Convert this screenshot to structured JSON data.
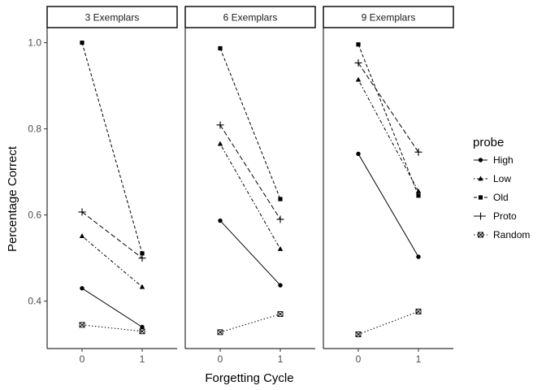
{
  "chart_data": {
    "type": "line",
    "facet_labels": [
      "3 Exemplars",
      "6 Exemplars",
      "9 Exemplars"
    ],
    "xlabel": "Forgetting Cycle",
    "ylabel": "Percentage Correct",
    "x_ticks": [
      "0",
      "1"
    ],
    "y_ticks": [
      "0.4",
      "0.6",
      "0.8",
      "1.0"
    ],
    "ylim": [
      0.29,
      1.035
    ],
    "legend": {
      "title": "probe",
      "placement": "right",
      "entries": [
        "High",
        "Low",
        "Old",
        "Proto",
        "Random"
      ]
    },
    "series": [
      {
        "name": "High",
        "line": "solid",
        "marker": "circle",
        "values": [
          [
            0.43,
            0.34
          ],
          [
            0.587,
            0.437
          ],
          [
            0.742,
            0.503
          ]
        ]
      },
      {
        "name": "Low",
        "line": "dotted-dashed",
        "marker": "triangle",
        "values": [
          [
            0.551,
            0.433
          ],
          [
            0.765,
            0.521
          ],
          [
            0.914,
            0.655
          ]
        ]
      },
      {
        "name": "Old",
        "line": "dashed",
        "marker": "square",
        "values": [
          [
            1.0,
            0.511
          ],
          [
            0.987,
            0.637
          ],
          [
            0.996,
            0.645
          ]
        ]
      },
      {
        "name": "Proto",
        "line": "long-dashed",
        "marker": "plus",
        "values": [
          [
            0.607,
            0.5
          ],
          [
            0.809,
            0.59
          ],
          [
            0.953,
            0.746
          ]
        ]
      },
      {
        "name": "Random",
        "line": "dotted",
        "marker": "boxed-cross",
        "values": [
          [
            0.345,
            0.33
          ],
          [
            0.328,
            0.37
          ],
          [
            0.323,
            0.376
          ]
        ]
      }
    ]
  }
}
